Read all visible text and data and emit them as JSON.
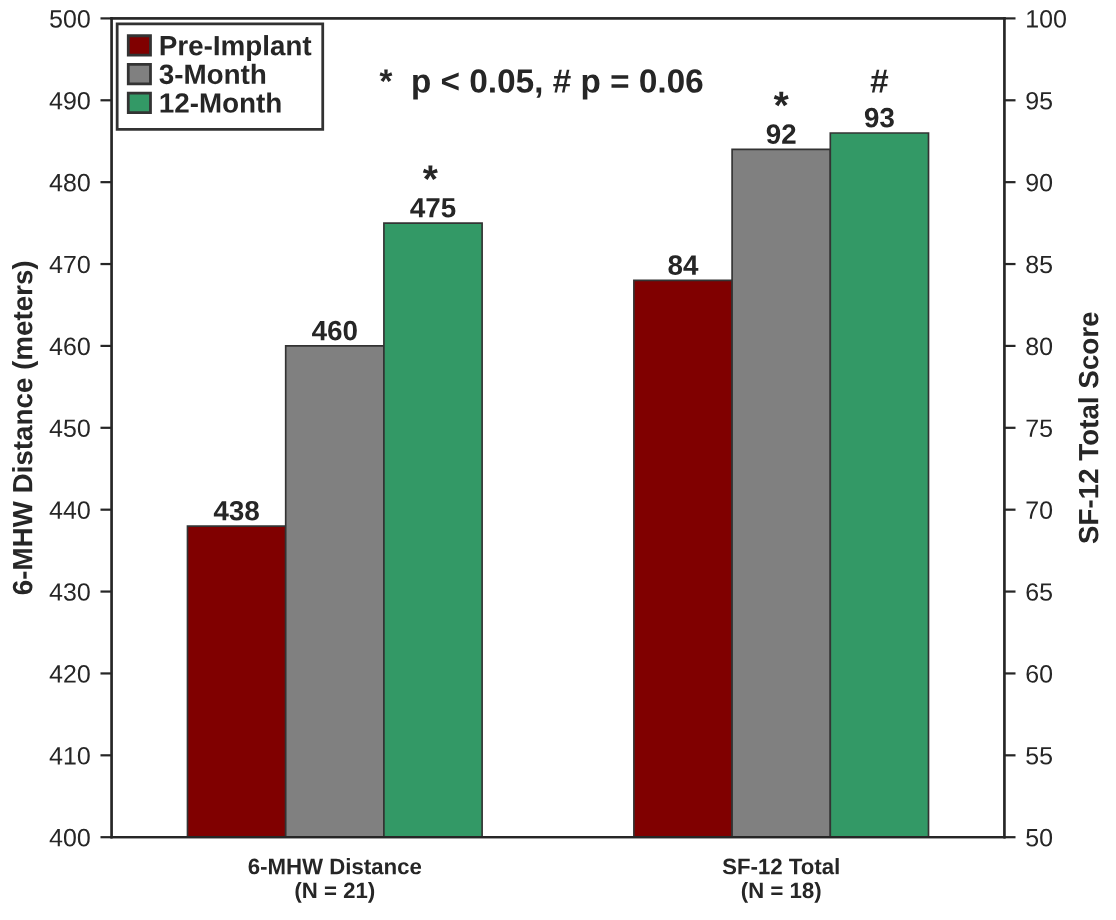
{
  "chart_data": {
    "type": "bar",
    "categories": [
      "6-MHW Distance\n(N = 21)",
      "SF-12 Total\n(N = 18)"
    ],
    "ylabel": "6-MHW Distance (meters)",
    "y2label": "SF-12 Total Score",
    "ylim": [
      400,
      500
    ],
    "yticks": [
      400,
      410,
      420,
      430,
      440,
      450,
      460,
      470,
      480,
      490,
      500
    ],
    "y2lim": [
      50,
      100
    ],
    "y2ticks": [
      50,
      55,
      60,
      65,
      70,
      75,
      80,
      85,
      90,
      95,
      100
    ],
    "series": [
      {
        "name": "Pre-Implant",
        "color": "#800000",
        "values": [
          438,
          null
        ]
      },
      {
        "name": "3-Month",
        "color": "#808080",
        "values": [
          460,
          null
        ]
      },
      {
        "name": "12-Month",
        "color": "#339966",
        "values": [
          475,
          null
        ]
      },
      {
        "color": "#800000",
        "axis": "y2",
        "values": [
          null,
          84
        ]
      },
      {
        "color": "#808080",
        "axis": "y2",
        "values": [
          null,
          92
        ]
      },
      {
        "color": "#339966",
        "axis": "y2",
        "values": [
          null,
          93
        ]
      }
    ],
    "data_labels": true,
    "legend": "top left",
    "grid": false,
    "annotations": [
      "*  p < 0.05, # p = 0.06",
      "*",
      "*",
      "#"
    ]
  }
}
